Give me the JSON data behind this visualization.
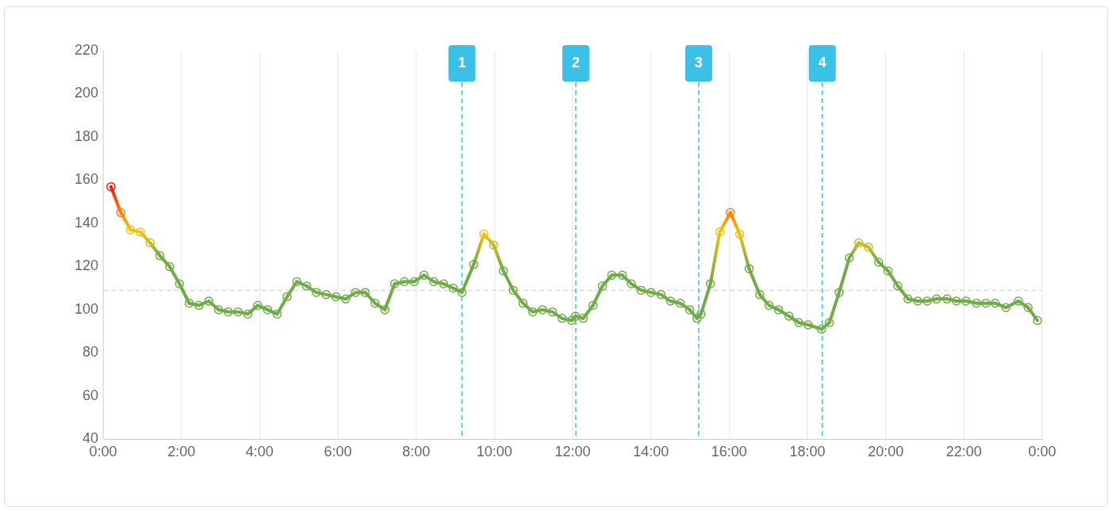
{
  "chart_data": {
    "type": "line",
    "x": [
      0.2,
      0.45,
      0.7,
      0.95,
      1.2,
      1.45,
      1.7,
      1.95,
      2.2,
      2.45,
      2.7,
      2.95,
      3.2,
      3.45,
      3.7,
      3.95,
      4.2,
      4.45,
      4.7,
      4.95,
      5.2,
      5.45,
      5.7,
      5.95,
      6.2,
      6.45,
      6.7,
      6.95,
      7.2,
      7.45,
      7.7,
      7.95,
      8.2,
      8.45,
      8.7,
      8.95,
      9.17,
      9.47,
      9.73,
      9.98,
      10.23,
      10.48,
      10.73,
      10.98,
      11.23,
      11.48,
      11.73,
      11.97,
      12.07,
      12.27,
      12.52,
      12.76,
      13.0,
      13.27,
      13.5,
      13.75,
      14.0,
      14.26,
      14.5,
      14.75,
      14.99,
      15.18,
      15.28,
      15.52,
      15.76,
      16.03,
      16.27,
      16.51,
      16.78,
      17.02,
      17.26,
      17.53,
      17.78,
      18.02,
      18.36,
      18.56,
      18.81,
      19.07,
      19.31,
      19.56,
      19.82,
      20.06,
      20.31,
      20.57,
      20.82,
      21.06,
      21.3,
      21.57,
      21.81,
      22.05,
      22.32,
      22.56,
      22.8,
      23.07,
      23.39,
      23.64,
      23.88
    ],
    "series": [
      {
        "values": [
          157,
          145,
          137,
          136,
          131,
          125,
          120,
          112,
          103,
          102,
          104,
          100,
          99,
          99,
          98,
          102,
          100,
          98,
          106,
          113,
          111,
          108,
          107,
          106,
          105,
          108,
          108,
          103,
          100,
          112,
          113,
          113,
          116,
          113,
          112,
          110,
          108,
          121,
          135,
          130,
          118,
          109,
          103,
          99,
          100,
          99,
          96,
          95,
          97,
          96,
          102,
          111,
          116,
          116,
          112,
          109,
          108,
          107,
          104,
          103,
          100,
          96,
          98,
          112,
          136,
          145,
          135,
          119,
          107,
          102,
          100,
          97,
          94,
          93,
          91,
          94,
          108,
          124,
          131,
          129,
          122,
          118,
          111,
          105,
          104,
          104,
          105,
          105,
          104,
          104,
          103,
          103,
          103,
          101,
          104,
          101,
          95
        ],
        "colors": [
          "#ee1c0e",
          "#ff8000",
          "#f2c10f",
          "#f2c10f",
          "#c6bb20",
          "#6fac46",
          "#6fac46",
          "#6fac46",
          "#6fac46",
          "#6fac46",
          "#6fac46",
          "#6fac46",
          "#6fac46",
          "#6fac46",
          "#6fac46",
          "#6fac46",
          "#6fac46",
          "#6fac46",
          "#6fac46",
          "#6fac46",
          "#6fac46",
          "#6fac46",
          "#6fac46",
          "#6fac46",
          "#6fac46",
          "#6fac46",
          "#6fac46",
          "#6fac46",
          "#6fac46",
          "#6fac46",
          "#6fac46",
          "#6fac46",
          "#6fac46",
          "#6fac46",
          "#6fac46",
          "#6fac46",
          "#6fac46",
          "#6fac46",
          "#f2c10f",
          "#c6bb20",
          "#6fac46",
          "#6fac46",
          "#6fac46",
          "#6fac46",
          "#6fac46",
          "#6fac46",
          "#6fac46",
          "#6fac46",
          "#6fac46",
          "#6fac46",
          "#6fac46",
          "#6fac46",
          "#6fac46",
          "#6fac46",
          "#6fac46",
          "#6fac46",
          "#6fac46",
          "#6fac46",
          "#6fac46",
          "#6fac46",
          "#6fac46",
          "#6fac46",
          "#6fac46",
          "#6fac46",
          "#f2c10f",
          "#ff8000",
          "#f2c10f",
          "#6fac46",
          "#6fac46",
          "#6fac46",
          "#6fac46",
          "#6fac46",
          "#6fac46",
          "#6fac46",
          "#6fac46",
          "#6fac46",
          "#6fac46",
          "#6fac46",
          "#c6bb20",
          "#c6bb20",
          "#6fac46",
          "#6fac46",
          "#6fac46",
          "#6fac46",
          "#6fac46",
          "#6fac46",
          "#6fac46",
          "#6fac46",
          "#6fac46",
          "#6fac46",
          "#6fac46",
          "#6fac46",
          "#6fac46",
          "#6fac46",
          "#6fac46",
          "#6fac46",
          "#6fac46"
        ]
      }
    ],
    "xlim": [
      0,
      24
    ],
    "xticks": [
      {
        "value": 0,
        "label": "0:00"
      },
      {
        "value": 2,
        "label": "2:00"
      },
      {
        "value": 4,
        "label": "4:00"
      },
      {
        "value": 6,
        "label": "6:00"
      },
      {
        "value": 8,
        "label": "8:00"
      },
      {
        "value": 10,
        "label": "10:00"
      },
      {
        "value": 12,
        "label": "12:00"
      },
      {
        "value": 14,
        "label": "14:00"
      },
      {
        "value": 16,
        "label": "16:00"
      },
      {
        "value": 18,
        "label": "18:00"
      },
      {
        "value": 20,
        "label": "20:00"
      },
      {
        "value": 22,
        "label": "22:00"
      },
      {
        "value": 24,
        "label": "0:00"
      }
    ],
    "ylim": [
      40,
      220
    ],
    "yticks": [
      40,
      60,
      80,
      100,
      120,
      140,
      160,
      180,
      200,
      220
    ],
    "grid": "x",
    "marker": "circle",
    "line_style": "solid",
    "legend": false,
    "ref_lines": [
      {
        "axis": "y",
        "value": 109,
        "color": "#d9d9d9",
        "line_style": "dashed"
      },
      {
        "axis": "x",
        "value": 9.17,
        "color": "#3bc0e6",
        "line_style": "dashed"
      },
      {
        "axis": "x",
        "value": 12.08,
        "color": "#3bc0e6",
        "line_style": "dashed"
      },
      {
        "axis": "x",
        "value": 15.22,
        "color": "#3bc0e6",
        "line_style": "dashed"
      },
      {
        "axis": "x",
        "value": 18.38,
        "color": "#3bc0e6",
        "line_style": "dashed"
      }
    ],
    "annotations": [
      {
        "text": "1",
        "x": 9.17
      },
      {
        "text": "2",
        "x": 12.08
      },
      {
        "text": "3",
        "x": 15.22
      },
      {
        "text": "4",
        "x": 18.38
      }
    ]
  }
}
